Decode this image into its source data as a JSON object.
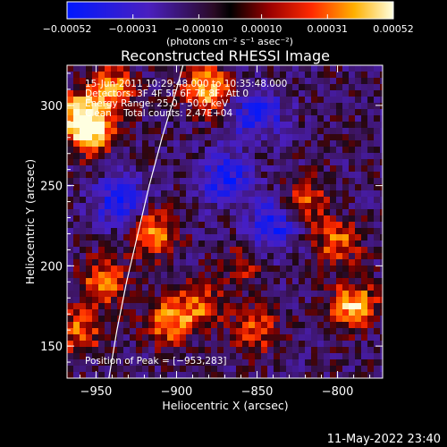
{
  "chart_data": {
    "type": "heatmap",
    "title": "Reconstructed RHESSI Image",
    "xlabel": "Heliocentric X (arcsec)",
    "ylabel": "Heliocentric Y (arcsec)",
    "xlim": [
      -968,
      -772
    ],
    "ylim": [
      130,
      325
    ],
    "x_ticks": [
      -950,
      -900,
      -850,
      -800
    ],
    "y_ticks": [
      150,
      200,
      250,
      300
    ],
    "x_tick_labels": [
      "−950",
      "−900",
      "−850",
      "−800"
    ],
    "y_tick_labels": [
      "150",
      "200",
      "250",
      "300"
    ],
    "colorbar": {
      "range": [
        -0.00052,
        0.00052
      ],
      "tick_values": [
        -0.00052,
        -0.00031,
        -0.0001,
        0.0001,
        0.00031,
        0.00052
      ],
      "tick_labels": [
        "−0.00052",
        "−0.00031",
        "−0.00010",
        "0.00010",
        "0.00031",
        "0.00052"
      ],
      "units": "(photons cm⁻² s⁻¹ asec⁻²)"
    },
    "annotations": {
      "time_range": "15-Jun-2011 10:29:48.000 to 10:35:48.000",
      "detectors": "Detectors: 3F 4F 5F 6F 7F 8F, Att 0",
      "energy_range": "Energy Range: 25.0 - 50.0 keV",
      "algorithm_counts": "Clean    Total counts: 2.47E+04",
      "peak_position": "Position of Peak = [−953,283]"
    },
    "peak": [
      -953,
      283
    ],
    "limb_curve": [
      [
        -942,
        130
      ],
      [
        -937,
        160
      ],
      [
        -931,
        190
      ],
      [
        -924,
        220
      ],
      [
        -917,
        250
      ],
      [
        -909,
        280
      ],
      [
        -900,
        310
      ],
      [
        -896,
        325
      ]
    ],
    "hot_regions": [
      {
        "x": -960,
        "y": 295,
        "level": 0.9
      },
      {
        "x": -953,
        "y": 283,
        "level": 1.0
      },
      {
        "x": -940,
        "y": 310,
        "level": 0.85
      },
      {
        "x": -880,
        "y": 310,
        "level": 1.0
      },
      {
        "x": -915,
        "y": 220,
        "level": 0.9
      },
      {
        "x": -945,
        "y": 190,
        "level": 0.8
      },
      {
        "x": -960,
        "y": 160,
        "level": 0.7
      },
      {
        "x": -905,
        "y": 165,
        "level": 0.8
      },
      {
        "x": -885,
        "y": 175,
        "level": 0.7
      },
      {
        "x": -850,
        "y": 160,
        "level": 0.6
      },
      {
        "x": -790,
        "y": 175,
        "level": 1.0
      },
      {
        "x": -800,
        "y": 215,
        "level": 0.7
      },
      {
        "x": -820,
        "y": 240,
        "level": 0.6
      },
      {
        "x": -860,
        "y": 200,
        "level": 0.4
      }
    ],
    "cold_regions": [
      {
        "x": -850,
        "y": 295
      },
      {
        "x": -840,
        "y": 225
      },
      {
        "x": -870,
        "y": 255
      },
      {
        "x": -935,
        "y": 240
      }
    ]
  },
  "footer": {
    "timestamp": "11-May-2022 23:40"
  }
}
